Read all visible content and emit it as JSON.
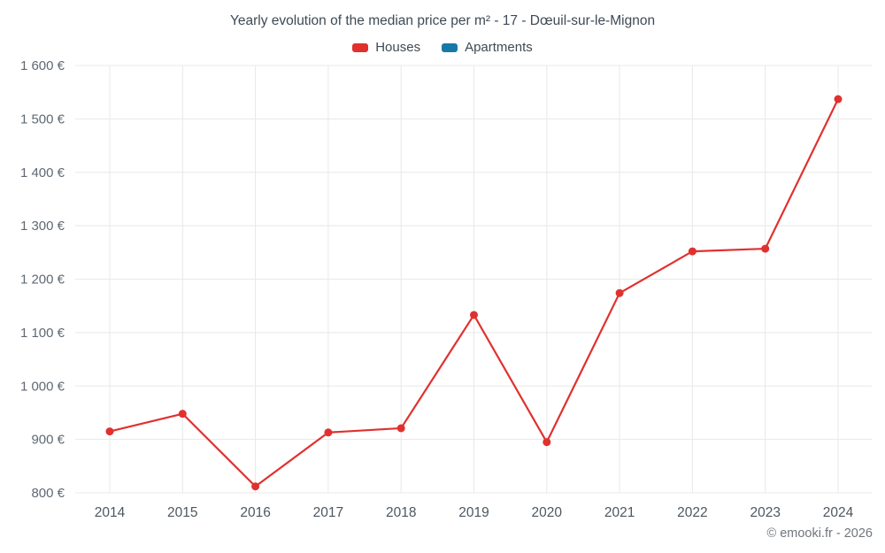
{
  "title": "Yearly evolution of the median price per m² - 17 - Dœuil-sur-le-Mignon",
  "legend": [
    {
      "label": "Houses",
      "color": "#e0312f"
    },
    {
      "label": "Apartments",
      "color": "#1779a8"
    }
  ],
  "watermark": "© emooki.fr - 2026",
  "chart_data": {
    "type": "line",
    "title": "Yearly evolution of the median price per m² - 17 - Dœuil-sur-le-Mignon",
    "categories": [
      "2014",
      "2015",
      "2016",
      "2017",
      "2018",
      "2019",
      "2020",
      "2021",
      "2022",
      "2023",
      "2024"
    ],
    "series": [
      {
        "name": "Houses",
        "color": "#e0312f",
        "values": [
          915,
          948,
          812,
          913,
          921,
          1133,
          895,
          1174,
          1252,
          1257,
          1537
        ]
      },
      {
        "name": "Apartments",
        "color": "#1779a8",
        "values": []
      }
    ],
    "xlabel": "",
    "ylabel": "",
    "ylim": [
      800,
      1600
    ],
    "ytick_step": 100,
    "ytick_suffix": " €",
    "grid": true,
    "legend_position": "top"
  }
}
